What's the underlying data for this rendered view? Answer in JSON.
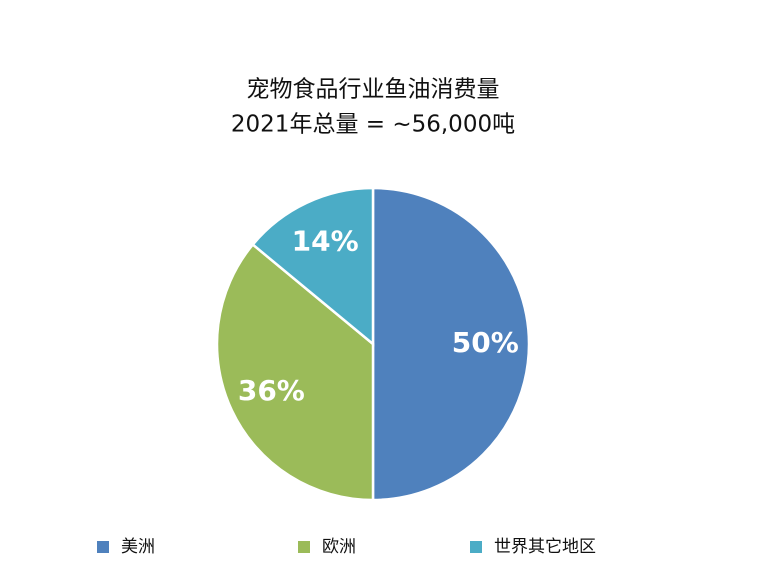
{
  "chart_data": {
    "type": "pie",
    "title": "宠物食品行业鱼油消费量",
    "subtitle": "2021年总量 = ~56,000吨",
    "categories": [
      "美洲",
      "欧洲",
      "世界其它地区"
    ],
    "values": [
      50,
      36,
      14
    ],
    "value_labels": [
      "50%",
      "36%",
      "14%"
    ],
    "colors": [
      "#4f81bd",
      "#9bbb59",
      "#4bacc6"
    ],
    "legend": "bottom"
  }
}
